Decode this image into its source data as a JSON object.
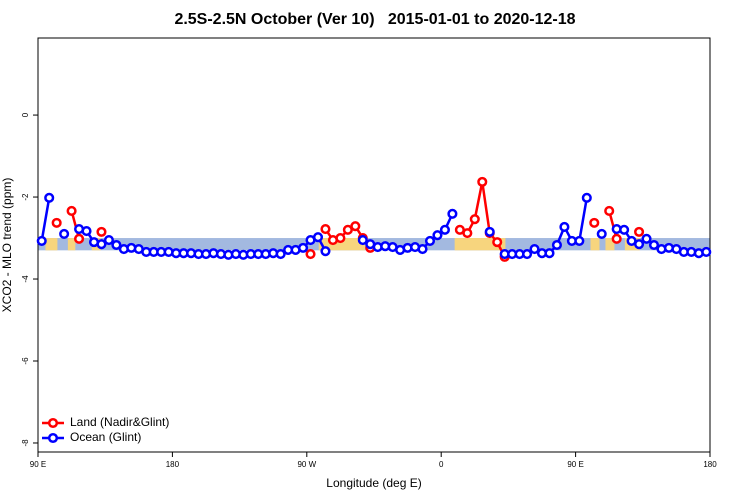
{
  "chart_data": {
    "type": "line",
    "title": "2.5S-2.5N October (Ver 10)   2015-01-01 to 2020-12-18",
    "x_label": "Longitude (deg E)",
    "y_label": "XCO2 - MLO trend (ppm)",
    "xlim": [
      90,
      540
    ],
    "ylim": [
      -8.22,
      1.88
    ],
    "xticks": [
      {
        "value": 90,
        "label": "90 E"
      },
      {
        "value": 180,
        "label": "180"
      },
      {
        "value": 270,
        "label": "90 W"
      },
      {
        "value": 360,
        "label": "0"
      },
      {
        "value": 450,
        "label": "90 E"
      },
      {
        "value": 540,
        "label": "180"
      }
    ],
    "yticks": [
      0,
      -2,
      -4,
      -6,
      -8
    ],
    "legend": "bottom-left",
    "band_ylim": [
      -3.3,
      -3.0
    ],
    "band_color": "#a3b9e0",
    "land_color": "#f7d57e",
    "land_bands": [
      [
        95,
        103
      ],
      [
        110,
        115
      ],
      [
        126,
        132
      ],
      [
        278,
        309
      ],
      [
        369,
        403
      ],
      [
        460,
        466
      ],
      [
        470,
        476
      ],
      [
        483,
        493
      ]
    ],
    "x": [
      92.5,
      97.5,
      102.5,
      107.5,
      112.5,
      117.5,
      122.5,
      127.5,
      132.5,
      137.5,
      142.5,
      147.5,
      152.5,
      157.5,
      162.5,
      167.5,
      172.5,
      177.5,
      182.5,
      187.5,
      192.5,
      197.5,
      202.5,
      207.5,
      212.5,
      217.5,
      222.5,
      227.5,
      232.5,
      237.5,
      242.5,
      247.5,
      252.5,
      257.5,
      262.5,
      267.5,
      272.5,
      277.5,
      282.5,
      287.5,
      292.5,
      297.5,
      302.5,
      307.5,
      312.5,
      317.5,
      322.5,
      327.5,
      332.5,
      337.5,
      342.5,
      347.5,
      352.5,
      357.5,
      362.5,
      367.5,
      372.5,
      377.5,
      382.5,
      387.5,
      392.5,
      397.5,
      402.5,
      407.5,
      412.5,
      417.5,
      422.5,
      427.5,
      432.5,
      437.5,
      442.5,
      447.5,
      452.5,
      457.5,
      462.5,
      467.5,
      472.5,
      477.5,
      482.5,
      487.5,
      492.5,
      497.5,
      502.5,
      507.5,
      512.5,
      517.5,
      522.5,
      527.5,
      532.5,
      537.5
    ],
    "series": [
      {
        "name": "Land (Nadir&Glint)",
        "color": "#ff0000",
        "values": [
          null,
          null,
          -2.63,
          null,
          -2.34,
          -3.02,
          null,
          null,
          -2.85,
          null,
          null,
          null,
          null,
          null,
          null,
          null,
          null,
          null,
          null,
          null,
          null,
          null,
          null,
          null,
          null,
          null,
          null,
          null,
          null,
          null,
          null,
          null,
          null,
          null,
          null,
          null,
          -3.39,
          null,
          -2.78,
          -3.05,
          -3.0,
          -2.8,
          -2.71,
          -3.0,
          -3.24,
          null,
          null,
          null,
          null,
          null,
          null,
          null,
          null,
          null,
          null,
          null,
          -2.8,
          -2.88,
          -2.54,
          -1.63,
          -2.88,
          -3.1,
          -3.46,
          null,
          null,
          null,
          null,
          null,
          null,
          null,
          null,
          null,
          null,
          null,
          -2.63,
          null,
          -2.34,
          -3.02,
          null,
          null,
          -2.85,
          null,
          null,
          null,
          null,
          null,
          null,
          null,
          null,
          null
        ]
      },
      {
        "name": "Ocean (Glint)",
        "color": "#0000ff",
        "values": [
          -3.07,
          -2.02,
          null,
          -2.9,
          null,
          -2.78,
          -2.83,
          -3.1,
          -3.15,
          -3.05,
          -3.17,
          -3.27,
          -3.24,
          -3.27,
          -3.34,
          -3.34,
          -3.34,
          -3.34,
          -3.37,
          -3.37,
          -3.37,
          -3.39,
          -3.39,
          -3.37,
          -3.39,
          -3.41,
          -3.39,
          -3.41,
          -3.39,
          -3.39,
          -3.39,
          -3.37,
          -3.39,
          -3.29,
          -3.29,
          -3.24,
          -3.05,
          -2.98,
          -3.32,
          null,
          null,
          null,
          null,
          -3.05,
          -3.15,
          -3.22,
          -3.2,
          -3.22,
          -3.29,
          -3.24,
          -3.22,
          -3.27,
          -3.07,
          -2.93,
          -2.8,
          -2.41,
          null,
          null,
          null,
          null,
          -2.85,
          null,
          -3.39,
          -3.39,
          -3.39,
          -3.39,
          -3.27,
          -3.37,
          -3.37,
          -3.17,
          -2.73,
          -3.07,
          -3.07,
          -2.02,
          null,
          -2.9,
          null,
          -2.78,
          -2.8,
          -3.07,
          -3.15,
          -3.02,
          -3.17,
          -3.27,
          -3.24,
          -3.27,
          -3.34,
          -3.34,
          -3.37,
          -3.34
        ]
      }
    ]
  }
}
